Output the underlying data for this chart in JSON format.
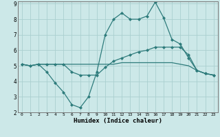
{
  "xlabel": "Humidex (Indice chaleur)",
  "x": [
    0,
    1,
    2,
    3,
    4,
    5,
    6,
    7,
    8,
    9,
    10,
    11,
    12,
    13,
    14,
    15,
    16,
    17,
    18,
    19,
    20,
    21,
    22,
    23
  ],
  "line1": [
    5.1,
    5.0,
    5.1,
    4.6,
    3.9,
    3.3,
    2.5,
    2.3,
    3.0,
    4.6,
    7.0,
    8.0,
    8.4,
    8.0,
    8.0,
    8.2,
    9.1,
    8.1,
    6.7,
    6.4,
    5.5,
    4.7,
    4.5,
    4.4
  ],
  "line2": [
    5.1,
    5.0,
    5.1,
    5.1,
    5.1,
    5.1,
    4.6,
    4.4,
    4.4,
    4.4,
    4.9,
    5.3,
    5.5,
    5.7,
    5.9,
    6.0,
    6.2,
    6.2,
    6.2,
    6.2,
    5.7,
    4.7,
    4.5,
    4.4
  ],
  "line3": [
    5.1,
    5.0,
    5.1,
    5.1,
    5.1,
    5.1,
    5.1,
    5.1,
    5.1,
    5.1,
    5.1,
    5.1,
    5.2,
    5.2,
    5.2,
    5.2,
    5.2,
    5.2,
    5.2,
    5.1,
    5.0,
    4.7,
    4.5,
    4.4
  ],
  "line_color": "#2d7b7b",
  "bg_color": "#cce8e8",
  "grid_color": "#aacfcf",
  "ylim": [
    2,
    9
  ],
  "yticks": [
    2,
    3,
    4,
    5,
    6,
    7,
    8,
    9
  ]
}
